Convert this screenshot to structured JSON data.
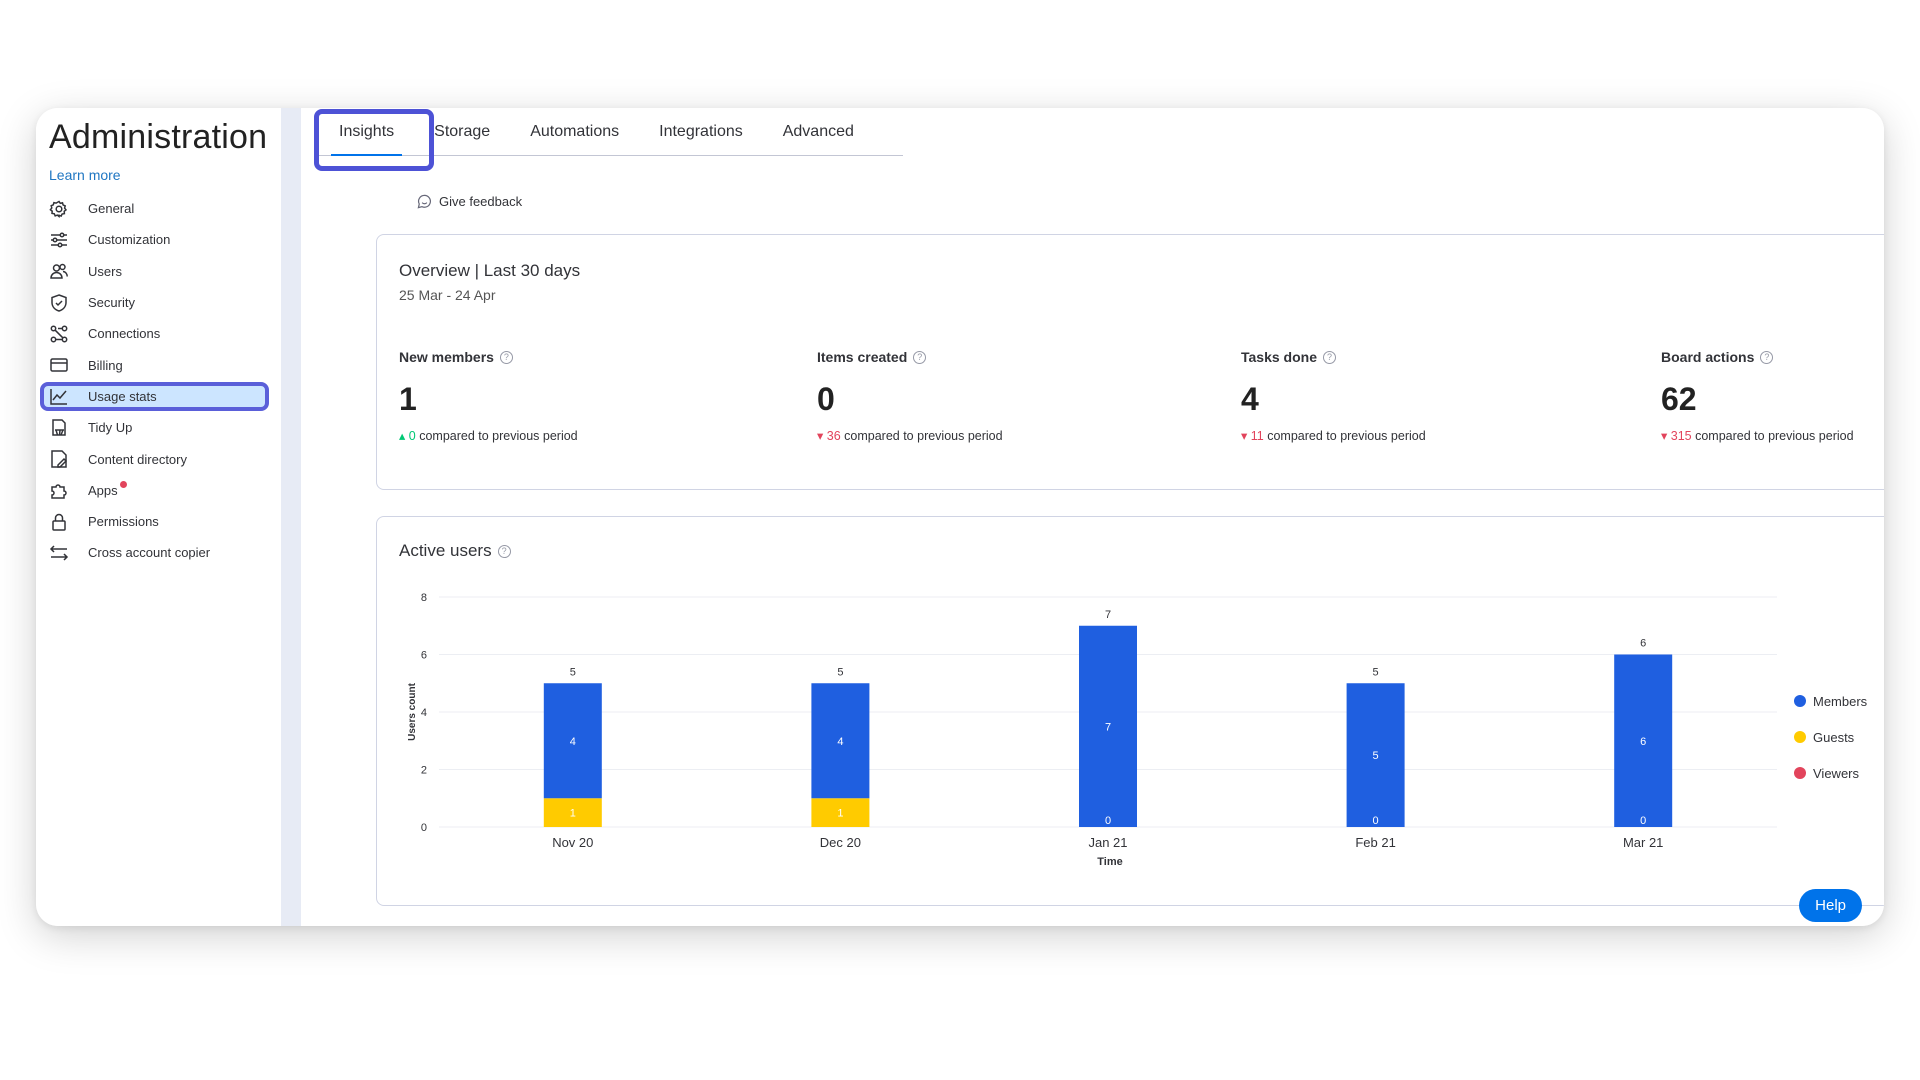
{
  "sidebar": {
    "title": "Administration",
    "learn_more": "Learn more",
    "items": [
      {
        "label": "General",
        "icon": "gear-icon"
      },
      {
        "label": "Customization",
        "icon": "sliders-icon"
      },
      {
        "label": "Users",
        "icon": "users-icon"
      },
      {
        "label": "Security",
        "icon": "shield-icon"
      },
      {
        "label": "Connections",
        "icon": "connections-icon"
      },
      {
        "label": "Billing",
        "icon": "credit-card-icon"
      },
      {
        "label": "Usage stats",
        "icon": "chart-line-icon"
      },
      {
        "label": "Tidy Up",
        "icon": "tidy-up-icon"
      },
      {
        "label": "Content directory",
        "icon": "content-directory-icon"
      },
      {
        "label": "Apps",
        "icon": "puzzle-icon"
      },
      {
        "label": "Permissions",
        "icon": "lock-icon"
      },
      {
        "label": "Cross account copier",
        "icon": "arrows-swap-icon"
      }
    ]
  },
  "tabs": [
    {
      "label": "Insights"
    },
    {
      "label": "Storage"
    },
    {
      "label": "Automations"
    },
    {
      "label": "Integrations"
    },
    {
      "label": "Advanced"
    }
  ],
  "feedback": "Give feedback",
  "overview": {
    "title": "Overview | Last 30 days",
    "range": "25 Mar - 24 Apr",
    "compare_text": "compared to previous period",
    "stats": [
      {
        "label": "New members",
        "value": "1",
        "delta": "0",
        "direction": "up"
      },
      {
        "label": "Items created",
        "value": "0",
        "delta": "36",
        "direction": "down"
      },
      {
        "label": "Tasks done",
        "value": "4",
        "delta": "11",
        "direction": "down"
      },
      {
        "label": "Board actions",
        "value": "62",
        "delta": "315",
        "direction": "down"
      }
    ]
  },
  "active_users": {
    "title": "Active users"
  },
  "chart_data": {
    "type": "bar",
    "stacked": true,
    "categories": [
      "Nov 20",
      "Dec 20",
      "Jan 21",
      "Feb 21",
      "Mar 21"
    ],
    "series": [
      {
        "name": "Guests",
        "values": [
          1,
          1,
          0,
          0,
          0
        ],
        "color": "#ffcb00"
      },
      {
        "name": "Members",
        "values": [
          4,
          4,
          7,
          5,
          6
        ],
        "color": "#1f5fe0"
      },
      {
        "name": "Viewers",
        "values": [
          0,
          0,
          0,
          0,
          0
        ],
        "color": "#e2445c"
      }
    ],
    "totals": [
      5,
      5,
      7,
      5,
      6
    ],
    "xlabel": "Time",
    "ylabel": "Users count",
    "ylim": [
      0,
      8
    ],
    "yticks": [
      0,
      2,
      4,
      6,
      8
    ],
    "grid": true,
    "legend": "right"
  },
  "help": "Help"
}
